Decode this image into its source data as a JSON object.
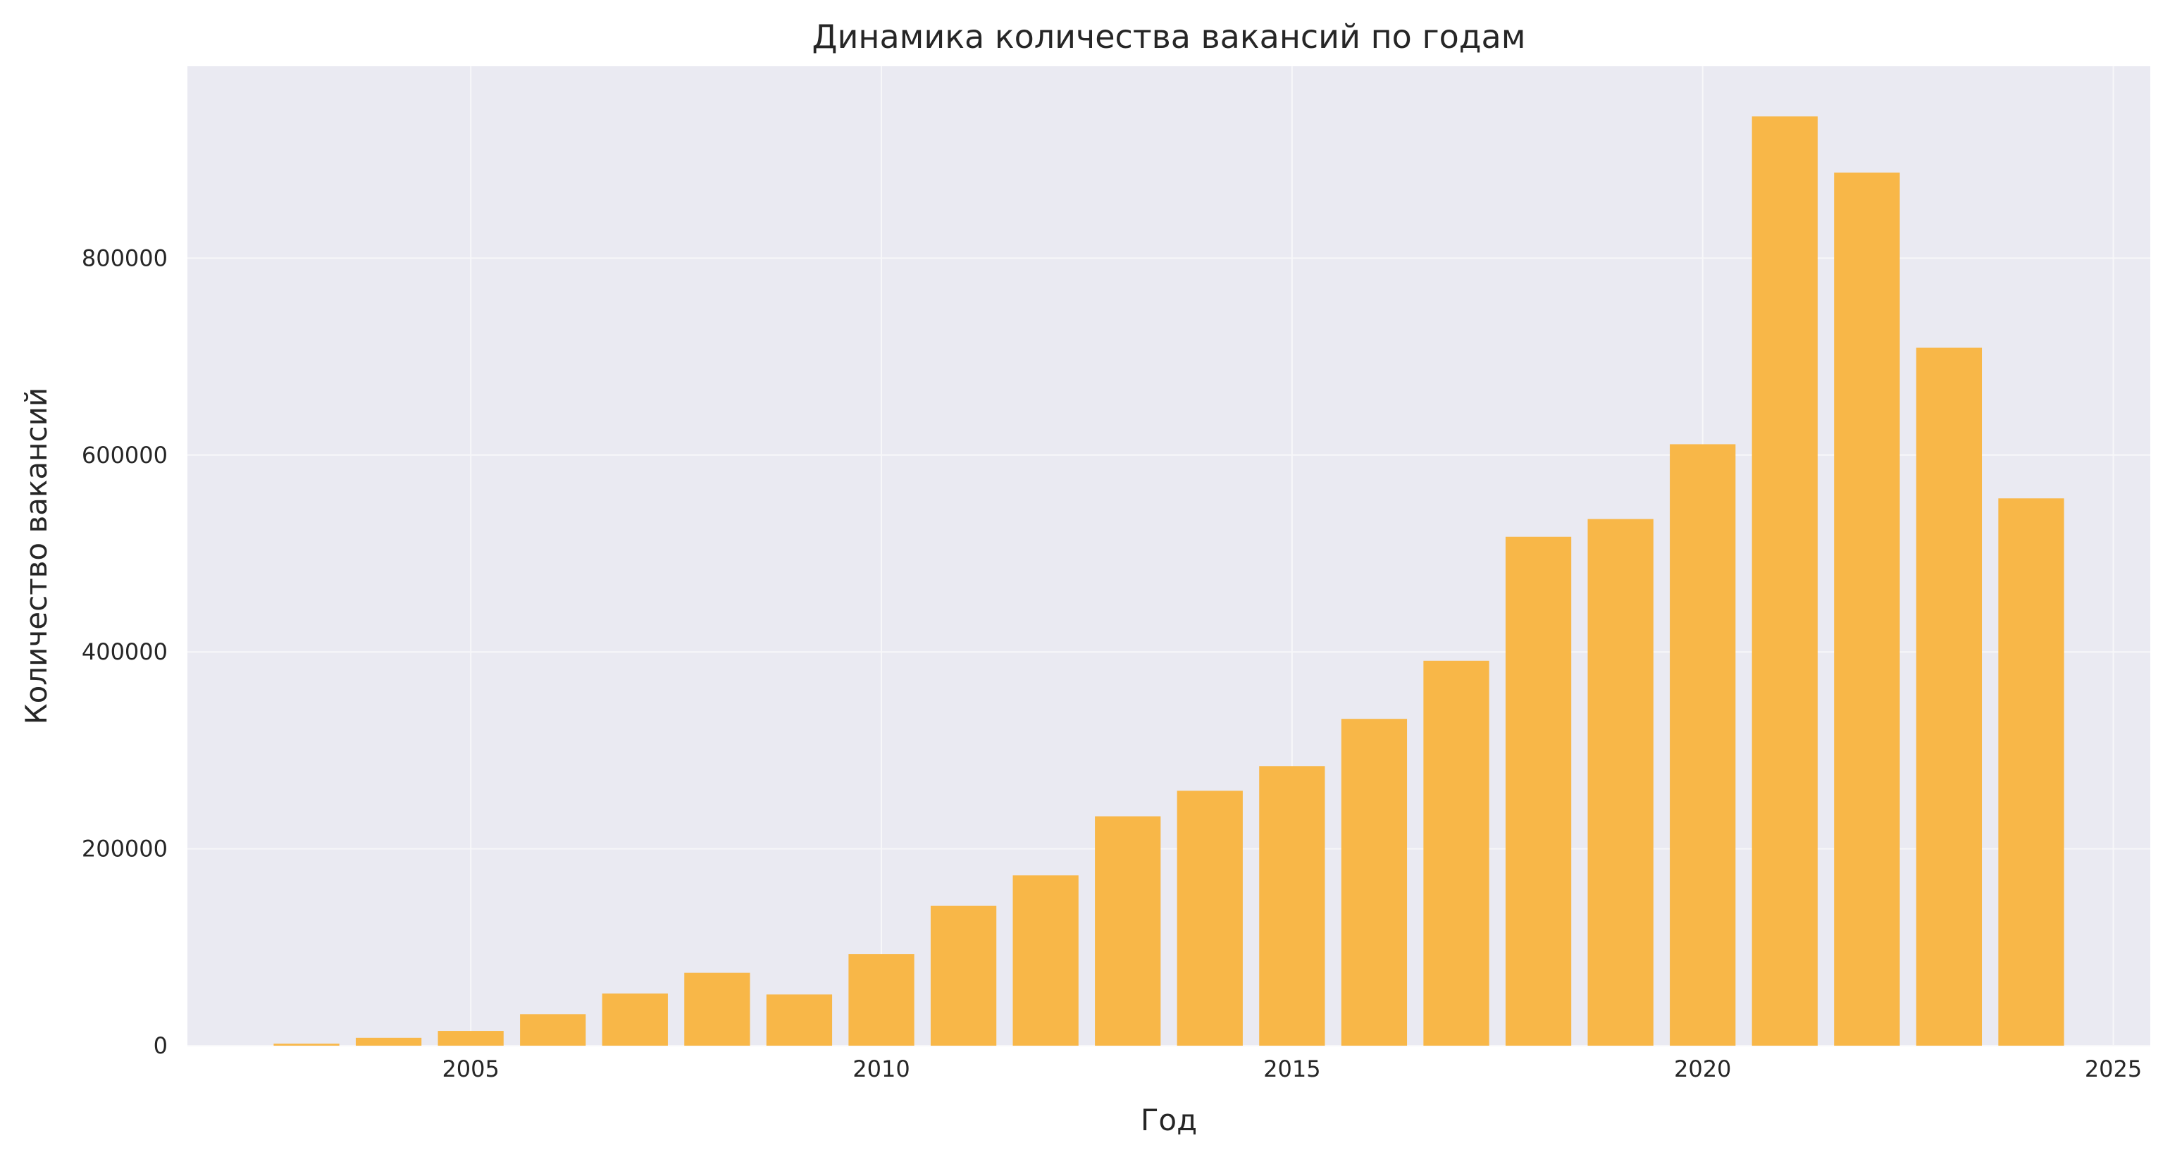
{
  "chart_data": {
    "type": "bar",
    "title": "Динамика количества вакансий по годам",
    "xlabel": "Год",
    "ylabel": "Количество вакансий",
    "x": [
      2003,
      2004,
      2005,
      2006,
      2007,
      2008,
      2009,
      2010,
      2011,
      2012,
      2013,
      2014,
      2015,
      2016,
      2017,
      2018,
      2019,
      2020,
      2021,
      2022,
      2023,
      2024
    ],
    "values": [
      2000,
      8000,
      15000,
      32000,
      53000,
      74000,
      52000,
      93000,
      142000,
      173000,
      233000,
      259000,
      284000,
      332000,
      391000,
      517000,
      535000,
      611000,
      944000,
      887000,
      709000,
      556000
    ],
    "xlim": [
      2001.55,
      2025.45
    ],
    "ylim": [
      0,
      995000
    ],
    "xticks": [
      2005,
      2010,
      2015,
      2020,
      2025
    ],
    "yticks": [
      0,
      200000,
      400000,
      600000,
      800000
    ],
    "xtick_labels": [
      "2005",
      "2010",
      "2015",
      "2020",
      "2025"
    ],
    "ytick_labels": [
      "0",
      "200000",
      "400000",
      "600000",
      "800000"
    ],
    "grid": true,
    "bar_color": "#F8B748",
    "background_color": "#EAEAF2",
    "gridline_color": "#F7F7F9"
  }
}
